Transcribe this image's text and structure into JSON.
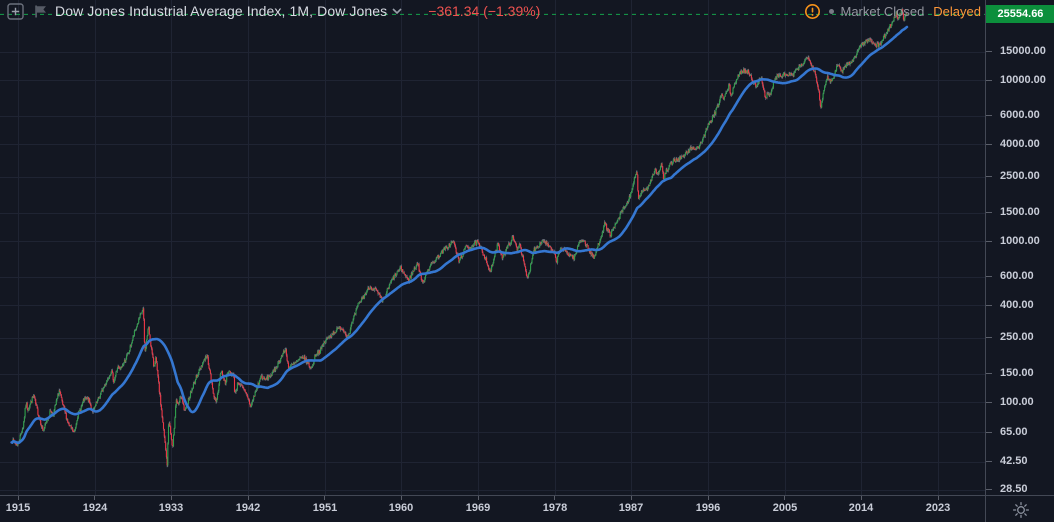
{
  "header": {
    "symbol_title": "Dow Jones Industrial Average Index, 1M, Dow Jones",
    "change_text": "−361.34 (−1.39%)",
    "add_symbol_icon": "plus-square-icon",
    "symbol_logo_icon": "flag-logo-icon",
    "dropdown_icon": "chevron-down-icon"
  },
  "status": {
    "alert_icon": "exclamation-circle-icon",
    "dot_icon": "dot-icon",
    "market_closed_label": "Market Closed",
    "delayed_label": "Delayed"
  },
  "price_scale": {
    "last_price_label": "25554.66",
    "ticks": [
      15000,
      10000,
      6000,
      4000,
      2500,
      1500,
      1000,
      600,
      400,
      250,
      150,
      100,
      65,
      42.5,
      28.5
    ]
  },
  "time_scale": {
    "ticks": [
      1915,
      1924,
      1933,
      1942,
      1951,
      1960,
      1969,
      1978,
      1987,
      1996,
      2005,
      2014,
      2023
    ],
    "corner_icon": "sun-icon"
  },
  "colors": {
    "background": "#131722",
    "grid": "#1f2433",
    "axis_border": "#434855",
    "axis_text": "#c9cdd8",
    "title_text": "#d8dbe3",
    "up_candle": "#2ea24a",
    "down_candle": "#f23645",
    "wick": "rgba(186,193,204,0.55)",
    "ma_line": "#3577d1",
    "price_line": "#14a14b",
    "last_label_bg": "#0c8f3c",
    "change_text": "#ef5350",
    "delayed_text": "#ff9839",
    "muted_text": "#9598a1",
    "icon_gray": "#6b707c"
  },
  "chart_data": {
    "type": "candlestick",
    "title": "Dow Jones Industrial Average Index",
    "interval": "1M",
    "y_scale": "log",
    "grid": true,
    "legend_position": "top-left",
    "x_range": [
      1914.25,
      2019.35
    ],
    "x_axis_ticks": [
      1915,
      1924,
      1933,
      1942,
      1951,
      1960,
      1969,
      1978,
      1987,
      1996,
      2005,
      2014,
      2023
    ],
    "y_axis_ticks": [
      15000,
      10000,
      6000,
      4000,
      2500,
      1500,
      1000,
      600,
      400,
      250,
      150,
      100,
      65,
      42.5,
      28.5
    ],
    "last_price": 25554.66,
    "change": -361.34,
    "change_percent": -1.39,
    "series": [
      {
        "name": "DJIA monthly candles",
        "type": "candlestick",
        "anchors_year_close": [
          [
            1914.25,
            58
          ],
          [
            1914.95,
            54
          ],
          [
            1915.6,
            71
          ],
          [
            1915.95,
            99
          ],
          [
            1916.15,
            90
          ],
          [
            1916.85,
            110
          ],
          [
            1917.1,
            95
          ],
          [
            1917.95,
            66
          ],
          [
            1918.85,
            89
          ],
          [
            1919.1,
            82
          ],
          [
            1919.85,
            119
          ],
          [
            1920.1,
            102
          ],
          [
            1920.95,
            72
          ],
          [
            1921.6,
            64
          ],
          [
            1921.95,
            81
          ],
          [
            1922.75,
            103
          ],
          [
            1923.2,
            105
          ],
          [
            1923.8,
            87
          ],
          [
            1924.95,
            120
          ],
          [
            1925.95,
            157
          ],
          [
            1926.25,
            135
          ],
          [
            1926.7,
            166
          ],
          [
            1926.95,
            157
          ],
          [
            1927.95,
            200
          ],
          [
            1928.95,
            300
          ],
          [
            1929.7,
            381
          ],
          [
            1929.88,
            199
          ],
          [
            1930.3,
            294
          ],
          [
            1930.95,
            164
          ],
          [
            1931.15,
            190
          ],
          [
            1931.95,
            78
          ],
          [
            1932.5,
            41
          ],
          [
            1932.7,
            80
          ],
          [
            1933.15,
            50
          ],
          [
            1933.55,
            105
          ],
          [
            1933.8,
            93
          ],
          [
            1934.1,
            110
          ],
          [
            1934.6,
            86
          ],
          [
            1935.0,
            104
          ],
          [
            1935.95,
            144
          ],
          [
            1936.85,
            184
          ],
          [
            1937.2,
            194
          ],
          [
            1937.9,
            115
          ],
          [
            1938.25,
            99
          ],
          [
            1938.85,
            158
          ],
          [
            1939.3,
            131
          ],
          [
            1939.7,
            155
          ],
          [
            1940.3,
            148
          ],
          [
            1940.45,
            112
          ],
          [
            1940.85,
            134
          ],
          [
            1941.95,
            108
          ],
          [
            1942.3,
            93
          ],
          [
            1942.95,
            119
          ],
          [
            1943.55,
            146
          ],
          [
            1943.9,
            136
          ],
          [
            1944.95,
            152
          ],
          [
            1945.95,
            193
          ],
          [
            1946.4,
            213
          ],
          [
            1946.75,
            163
          ],
          [
            1947.95,
            181
          ],
          [
            1948.45,
            192
          ],
          [
            1949.45,
            161
          ],
          [
            1949.95,
            200
          ],
          [
            1950.5,
            209
          ],
          [
            1950.95,
            235
          ],
          [
            1951.95,
            269
          ],
          [
            1952.95,
            292
          ],
          [
            1953.7,
            255
          ],
          [
            1954.95,
            404
          ],
          [
            1955.95,
            488
          ],
          [
            1956.28,
            521
          ],
          [
            1956.95,
            499
          ],
          [
            1957.8,
            420
          ],
          [
            1958.95,
            584
          ],
          [
            1959.95,
            679
          ],
          [
            1960.8,
            566
          ],
          [
            1961.9,
            735
          ],
          [
            1962.5,
            536
          ],
          [
            1962.95,
            652
          ],
          [
            1963.95,
            763
          ],
          [
            1964.95,
            874
          ],
          [
            1966.1,
            995
          ],
          [
            1966.75,
            744
          ],
          [
            1967.7,
            943
          ],
          [
            1967.95,
            905
          ],
          [
            1968.9,
            985
          ],
          [
            1969.95,
            769
          ],
          [
            1970.4,
            631
          ],
          [
            1971.3,
            950
          ],
          [
            1971.85,
            798
          ],
          [
            1972.95,
            1020
          ],
          [
            1973.05,
            1052
          ],
          [
            1973.65,
            880
          ],
          [
            1973.85,
            987
          ],
          [
            1974.75,
            585
          ],
          [
            1974.95,
            616
          ],
          [
            1975.5,
            880
          ],
          [
            1976.7,
            1015
          ],
          [
            1977.95,
            831
          ],
          [
            1978.2,
            742
          ],
          [
            1978.7,
            907
          ],
          [
            1979.85,
            815
          ],
          [
            1980.3,
            785
          ],
          [
            1980.9,
            1000
          ],
          [
            1981.3,
            1024
          ],
          [
            1982.6,
            777
          ],
          [
            1983.85,
            1277
          ],
          [
            1984.55,
            1087
          ],
          [
            1985.95,
            1547
          ],
          [
            1986.65,
            1775
          ],
          [
            1987.65,
            2722
          ],
          [
            1987.8,
            1739
          ],
          [
            1987.95,
            1939
          ],
          [
            1988.95,
            2169
          ],
          [
            1989.75,
            2791
          ],
          [
            1990.05,
            2590
          ],
          [
            1990.55,
            2999
          ],
          [
            1990.8,
            2365
          ],
          [
            1990.95,
            2634
          ],
          [
            1991.95,
            3169
          ],
          [
            1992.95,
            3301
          ],
          [
            1993.95,
            3754
          ],
          [
            1994.95,
            3834
          ],
          [
            1995.95,
            5117
          ],
          [
            1996.95,
            6448
          ],
          [
            1997.6,
            8222
          ],
          [
            1997.85,
            7442
          ],
          [
            1997.95,
            7908
          ],
          [
            1998.5,
            9328
          ],
          [
            1998.7,
            7539
          ],
          [
            1998.95,
            9181
          ],
          [
            1999.95,
            11497
          ],
          [
            2000.7,
            11215
          ],
          [
            2000.95,
            10788
          ],
          [
            2001.72,
            8848
          ],
          [
            2001.95,
            10022
          ],
          [
            2002.2,
            10635
          ],
          [
            2002.75,
            7591
          ],
          [
            2002.95,
            8342
          ],
          [
            2003.2,
            7892
          ],
          [
            2003.95,
            10454
          ],
          [
            2004.95,
            10783
          ],
          [
            2005.95,
            10718
          ],
          [
            2006.95,
            12463
          ],
          [
            2007.78,
            13930
          ],
          [
            2007.95,
            13265
          ],
          [
            2008.5,
            11350
          ],
          [
            2008.95,
            8776
          ],
          [
            2009.2,
            6763
          ],
          [
            2009.95,
            10428
          ],
          [
            2010.5,
            9774
          ],
          [
            2010.95,
            11578
          ],
          [
            2011.35,
            12811
          ],
          [
            2011.75,
            10913
          ],
          [
            2011.95,
            12218
          ],
          [
            2012.95,
            13104
          ],
          [
            2013.95,
            16577
          ],
          [
            2014.95,
            17823
          ],
          [
            2015.75,
            16528
          ],
          [
            2016.1,
            16466
          ],
          [
            2016.95,
            19763
          ],
          [
            2017.95,
            24719
          ],
          [
            2018.1,
            26149
          ],
          [
            2018.25,
            24103
          ],
          [
            2018.75,
            26828
          ],
          [
            2018.95,
            23327
          ],
          [
            2019.2,
            25916
          ],
          [
            2019.35,
            25554.66
          ]
        ]
      },
      {
        "name": "Moving average",
        "type": "line",
        "window_months": 48
      }
    ]
  }
}
